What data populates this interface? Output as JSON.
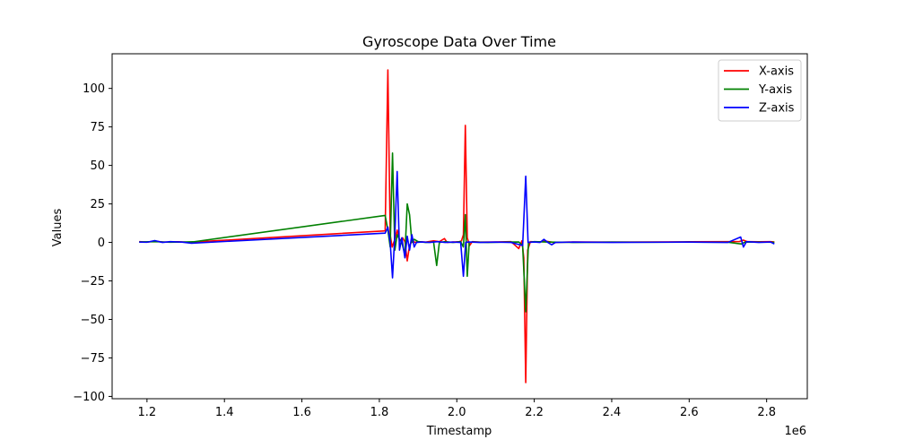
{
  "chart_data": {
    "type": "line",
    "title": "Gyroscope Data Over Time",
    "xlabel": "Timestamp",
    "ylabel": "Values",
    "x_offset_label": "1e6",
    "xlim": [
      1110000,
      2905000
    ],
    "ylim": [
      -101.5,
      122.5
    ],
    "xticks": [
      1200000,
      1400000,
      1600000,
      1800000,
      2000000,
      2200000,
      2400000,
      2600000,
      2800000
    ],
    "xtick_labels": [
      "1.2",
      "1.4",
      "1.6",
      "1.8",
      "2.0",
      "2.2",
      "2.4",
      "2.6",
      "2.8"
    ],
    "yticks": [
      -100,
      -75,
      -50,
      -25,
      0,
      25,
      50,
      75,
      100
    ],
    "ytick_labels": [
      "−100",
      "−75",
      "−50",
      "−25",
      "0",
      "25",
      "50",
      "75",
      "100"
    ],
    "grid": false,
    "legend_position": "top-right",
    "series": [
      {
        "name": "X-axis",
        "color": "#ff0000",
        "points": [
          [
            1180000,
            0.5
          ],
          [
            1200000,
            0.2
          ],
          [
            1220000,
            0.8
          ],
          [
            1240000,
            0.3
          ],
          [
            1260000,
            0.2
          ],
          [
            1280000,
            0.4
          ],
          [
            1310000,
            0.1
          ],
          [
            1815000,
            7.5
          ],
          [
            1822000,
            112
          ],
          [
            1828000,
            5
          ],
          [
            1833000,
            -3
          ],
          [
            1840000,
            2
          ],
          [
            1846000,
            8
          ],
          [
            1852000,
            1
          ],
          [
            1860000,
            3
          ],
          [
            1866000,
            0.5
          ],
          [
            1872000,
            -12
          ],
          [
            1878000,
            -2
          ],
          [
            1885000,
            1
          ],
          [
            1892000,
            0
          ],
          [
            1900000,
            0.5
          ],
          [
            1920000,
            0.2
          ],
          [
            1940000,
            1
          ],
          [
            1955000,
            0.5
          ],
          [
            1968000,
            2.5
          ],
          [
            1975000,
            0
          ],
          [
            1990000,
            0.3
          ],
          [
            2005000,
            0.4
          ],
          [
            2012000,
            1
          ],
          [
            2017000,
            5
          ],
          [
            2022000,
            76
          ],
          [
            2027000,
            3
          ],
          [
            2033000,
            -2
          ],
          [
            2040000,
            0.5
          ],
          [
            2060000,
            0.2
          ],
          [
            2100000,
            0.3
          ],
          [
            2140000,
            0.5
          ],
          [
            2160000,
            -4
          ],
          [
            2168000,
            1
          ],
          [
            2173000,
            -10
          ],
          [
            2178000,
            -91
          ],
          [
            2183000,
            -5
          ],
          [
            2190000,
            0.5
          ],
          [
            2210000,
            0.3
          ],
          [
            2230000,
            0.8
          ],
          [
            2250000,
            0
          ],
          [
            2300000,
            0.3
          ],
          [
            2400000,
            0.2
          ],
          [
            2500000,
            0.3
          ],
          [
            2600000,
            0.4
          ],
          [
            2700000,
            0.5
          ],
          [
            2730000,
            0.6
          ],
          [
            2740000,
            1.5
          ],
          [
            2750000,
            0.5
          ],
          [
            2780000,
            0.4
          ],
          [
            2810000,
            0.5
          ],
          [
            2820000,
            0.3
          ]
        ]
      },
      {
        "name": "Y-axis",
        "color": "#008000",
        "points": [
          [
            1180000,
            0.3
          ],
          [
            1220000,
            0.5
          ],
          [
            1260000,
            0.1
          ],
          [
            1300000,
            0.3
          ],
          [
            1320000,
            0.4
          ],
          [
            1815000,
            17.5
          ],
          [
            1822000,
            8
          ],
          [
            1828000,
            -3
          ],
          [
            1834000,
            58
          ],
          [
            1840000,
            -5
          ],
          [
            1846000,
            5
          ],
          [
            1852000,
            2
          ],
          [
            1858000,
            0
          ],
          [
            1866000,
            -8
          ],
          [
            1872000,
            25
          ],
          [
            1878000,
            18
          ],
          [
            1884000,
            0
          ],
          [
            1890000,
            2
          ],
          [
            1900000,
            0.5
          ],
          [
            1920000,
            0
          ],
          [
            1940000,
            0.3
          ],
          [
            1948000,
            -15
          ],
          [
            1955000,
            0
          ],
          [
            1970000,
            0.5
          ],
          [
            1990000,
            0
          ],
          [
            2010000,
            0.5
          ],
          [
            2017000,
            -3
          ],
          [
            2022000,
            18
          ],
          [
            2027000,
            -22
          ],
          [
            2032000,
            0
          ],
          [
            2040000,
            0.3
          ],
          [
            2080000,
            0
          ],
          [
            2120000,
            0.2
          ],
          [
            2160000,
            0.3
          ],
          [
            2170000,
            -2
          ],
          [
            2178000,
            -45
          ],
          [
            2185000,
            0
          ],
          [
            2200000,
            0.5
          ],
          [
            2240000,
            0.2
          ],
          [
            2300000,
            0
          ],
          [
            2400000,
            0.2
          ],
          [
            2500000,
            0.1
          ],
          [
            2600000,
            0.2
          ],
          [
            2700000,
            0.1
          ],
          [
            2735000,
            -1
          ],
          [
            2745000,
            0.3
          ],
          [
            2780000,
            0.2
          ],
          [
            2820000,
            0.1
          ]
        ]
      },
      {
        "name": "Z-axis",
        "color": "#0000ff",
        "points": [
          [
            1180000,
            0.2
          ],
          [
            1200000,
            0.1
          ],
          [
            1220000,
            1.2
          ],
          [
            1240000,
            0
          ],
          [
            1260000,
            0.5
          ],
          [
            1290000,
            0.2
          ],
          [
            1315000,
            -0.5
          ],
          [
            1815000,
            6
          ],
          [
            1822000,
            10
          ],
          [
            1828000,
            0
          ],
          [
            1834000,
            -23
          ],
          [
            1840000,
            5
          ],
          [
            1846000,
            46
          ],
          [
            1852000,
            -5
          ],
          [
            1858000,
            3
          ],
          [
            1866000,
            -10
          ],
          [
            1872000,
            4
          ],
          [
            1878000,
            -5
          ],
          [
            1884000,
            5
          ],
          [
            1890000,
            -3
          ],
          [
            1896000,
            0
          ],
          [
            1910000,
            0.3
          ],
          [
            1930000,
            0
          ],
          [
            1950000,
            0.5
          ],
          [
            1970000,
            0
          ],
          [
            1990000,
            0.2
          ],
          [
            2010000,
            0
          ],
          [
            2017000,
            -22
          ],
          [
            2023000,
            0
          ],
          [
            2030000,
            0.3
          ],
          [
            2060000,
            0
          ],
          [
            2100000,
            0.2
          ],
          [
            2140000,
            0
          ],
          [
            2170000,
            -2
          ],
          [
            2178000,
            43
          ],
          [
            2184000,
            0
          ],
          [
            2200000,
            0.3
          ],
          [
            2215000,
            0
          ],
          [
            2225000,
            2
          ],
          [
            2235000,
            0
          ],
          [
            2245000,
            -1.5
          ],
          [
            2255000,
            0
          ],
          [
            2300000,
            0.2
          ],
          [
            2400000,
            0
          ],
          [
            2500000,
            0.1
          ],
          [
            2600000,
            0.2
          ],
          [
            2700000,
            0
          ],
          [
            2733000,
            3.5
          ],
          [
            2740000,
            -3
          ],
          [
            2748000,
            0.5
          ],
          [
            2780000,
            0
          ],
          [
            2810000,
            0.3
          ],
          [
            2820000,
            -1
          ]
        ]
      }
    ]
  }
}
